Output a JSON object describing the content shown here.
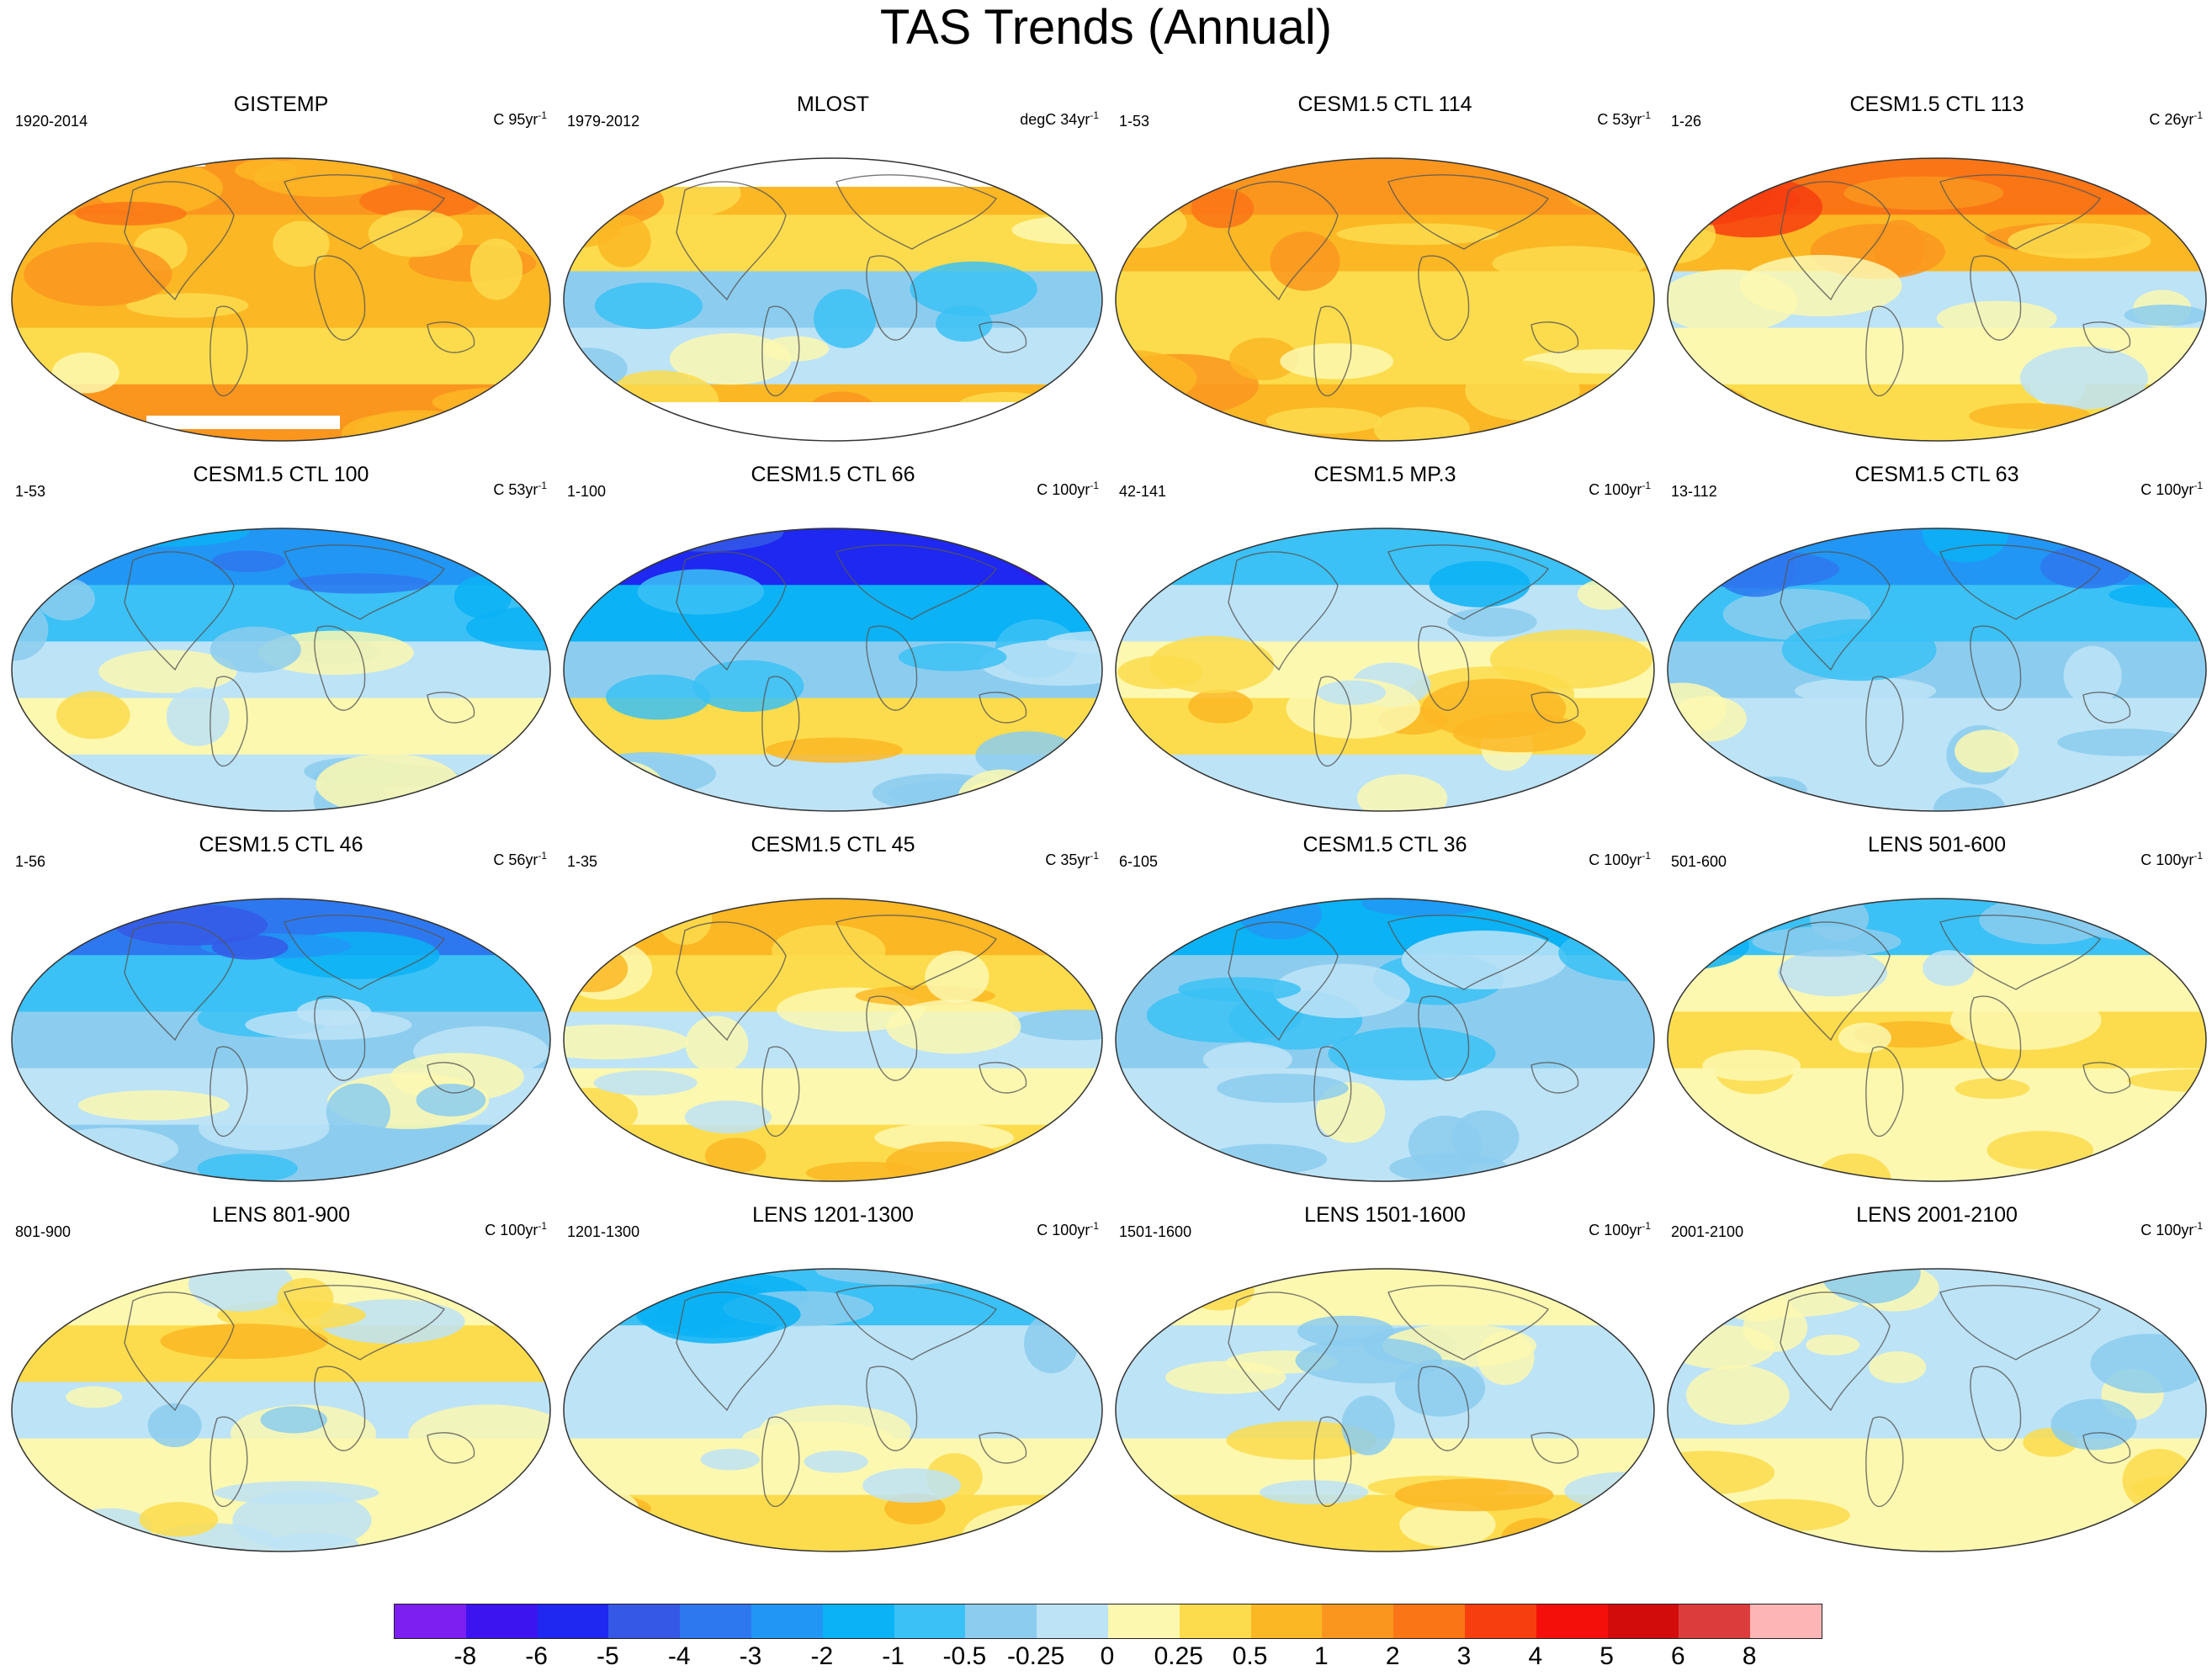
{
  "title": "TAS Trends (Annual)",
  "colors": {
    "scale": [
      "#7d1ff0",
      "#3c14f0",
      "#1e28f0",
      "#3559e6",
      "#2e78ef",
      "#2196f5",
      "#0bb2f5",
      "#3bc1f5",
      "#8ccdef",
      "#bde3f6",
      "#fcf8b0",
      "#fcdc4c",
      "#fbb724",
      "#fa961e",
      "#fa7516",
      "#f73e0f",
      "#f50f0a",
      "#d20c0b",
      "#dc3c3c",
      "#fdb5b5"
    ],
    "ocean_missing": "#ffffff",
    "coast": "#555555"
  },
  "colorbar": {
    "labels": [
      "-8",
      "-6",
      "-5",
      "-4",
      "-3",
      "-2",
      "-1",
      "-0.5",
      "-0.25",
      "0",
      "0.25",
      "0.5",
      "1",
      "2",
      "3",
      "4",
      "5",
      "6",
      "8"
    ]
  },
  "panels": [
    {
      "title": "GISTEMP",
      "left": "1920-2014",
      "units": "C 95yr",
      "units_sup": "-1",
      "palette": [
        13,
        12,
        12,
        11,
        13
      ],
      "missing": [
        "top-small",
        "antarctic-band"
      ]
    },
    {
      "title": "MLOST",
      "left": "1979-2012",
      "units": "degC 34yr",
      "units_sup": "-1",
      "palette": [
        12,
        11,
        8,
        9,
        12
      ],
      "missing": [
        "arctic",
        "antarctic"
      ]
    },
    {
      "title": "CESM1.5 CTL 114",
      "left": "1-53",
      "units": "C 53yr",
      "units_sup": "-1",
      "palette": [
        13,
        12,
        11,
        11,
        12
      ],
      "missing": []
    },
    {
      "title": "CESM1.5 CTL 113",
      "left": "1-26",
      "units": "C 26yr",
      "units_sup": "-1",
      "palette": [
        14,
        12,
        9,
        10,
        11
      ],
      "missing": []
    },
    {
      "title": "CESM1.5 CTL 100",
      "left": "1-53",
      "units": "C 53yr",
      "units_sup": "-1",
      "palette": [
        5,
        7,
        9,
        10,
        9
      ],
      "missing": []
    },
    {
      "title": "CESM1.5 CTL 66",
      "left": "1-100",
      "units": "C 100yr",
      "units_sup": "-1",
      "palette": [
        2,
        6,
        8,
        11,
        9
      ],
      "missing": []
    },
    {
      "title": "CESM1.5 MP.3",
      "left": "42-141",
      "units": "C 100yr",
      "units_sup": "-1",
      "palette": [
        7,
        9,
        10,
        11,
        9
      ],
      "missing": []
    },
    {
      "title": "CESM1.5 CTL 63",
      "left": "13-112",
      "units": "C 100yr",
      "units_sup": "-1",
      "palette": [
        5,
        7,
        8,
        9,
        9
      ],
      "missing": []
    },
    {
      "title": "CESM1.5 CTL 46",
      "left": "1-56",
      "units": "C 56yr",
      "units_sup": "-1",
      "palette": [
        4,
        7,
        8,
        9,
        8
      ],
      "missing": []
    },
    {
      "title": "CESM1.5 CTL 45",
      "left": "1-35",
      "units": "C 35yr",
      "units_sup": "-1",
      "palette": [
        12,
        11,
        9,
        10,
        11
      ],
      "missing": []
    },
    {
      "title": "CESM1.5 CTL 36",
      "left": "6-105",
      "units": "C 100yr",
      "units_sup": "-1",
      "palette": [
        6,
        8,
        8,
        9,
        9
      ],
      "missing": []
    },
    {
      "title": "LENS 501-600",
      "left": "501-600",
      "units": "C 100yr",
      "units_sup": "-1",
      "palette": [
        7,
        10,
        11,
        10,
        10
      ],
      "missing": []
    },
    {
      "title": "LENS 801-900",
      "left": "801-900",
      "units": "C 100yr",
      "units_sup": "-1",
      "palette": [
        10,
        11,
        9,
        10,
        10
      ],
      "missing": []
    },
    {
      "title": "LENS 1201-1300",
      "left": "1201-1300",
      "units": "C 100yr",
      "units_sup": "-1",
      "palette": [
        7,
        9,
        9,
        10,
        11
      ],
      "missing": []
    },
    {
      "title": "LENS 1501-1600",
      "left": "1501-1600",
      "units": "C 100yr",
      "units_sup": "-1",
      "palette": [
        10,
        9,
        9,
        10,
        11
      ],
      "missing": []
    },
    {
      "title": "LENS 2001-2100",
      "left": "2001-2100",
      "units": "C 100yr",
      "units_sup": "-1",
      "palette": [
        9,
        9,
        9,
        10,
        10
      ],
      "missing": []
    }
  ]
}
